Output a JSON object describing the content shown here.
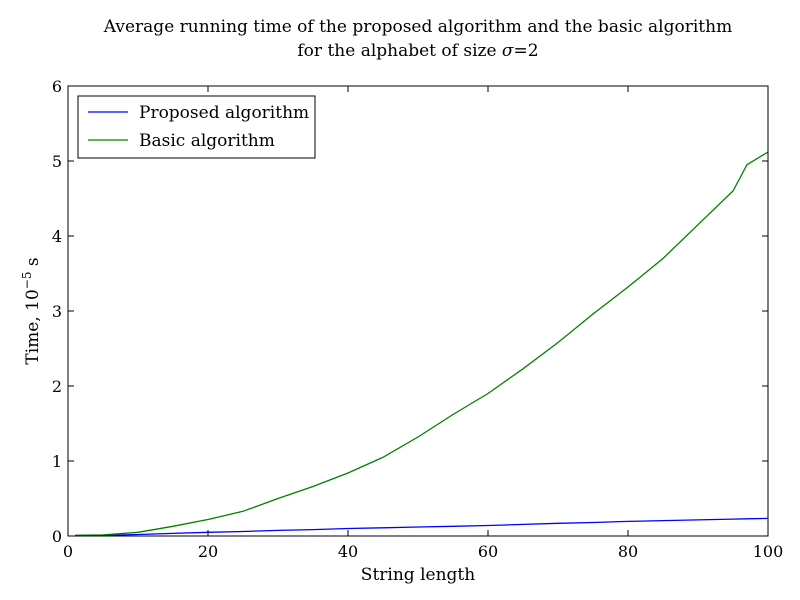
{
  "chart_data": {
    "type": "line",
    "title": "Average running time of the proposed algorithm and the basic algorithm",
    "subtitle_prefix": "for the alphabet of size ",
    "subtitle_symbol": "σ",
    "subtitle_suffix": "=2",
    "xlabel": "String length",
    "ylabel_prefix": "Time, 10",
    "ylabel_exponent": "−5",
    "ylabel_suffix": " s",
    "xlim": [
      0,
      100
    ],
    "ylim": [
      0,
      6
    ],
    "xticks": [
      0,
      20,
      40,
      60,
      80,
      100
    ],
    "yticks": [
      0,
      1,
      2,
      3,
      4,
      5,
      6
    ],
    "grid": false,
    "legend_position": "top-left",
    "x": [
      1,
      5,
      10,
      15,
      20,
      25,
      30,
      35,
      40,
      45,
      50,
      55,
      60,
      65,
      70,
      75,
      80,
      85,
      90,
      95,
      97,
      100
    ],
    "series": [
      {
        "name": "Proposed algorithm",
        "color": "#0000ff",
        "values": [
          0.005,
          0.01,
          0.02,
          0.035,
          0.05,
          0.06,
          0.075,
          0.085,
          0.1,
          0.11,
          0.12,
          0.13,
          0.14,
          0.155,
          0.17,
          0.18,
          0.195,
          0.205,
          0.215,
          0.225,
          0.23,
          0.235
        ]
      },
      {
        "name": "Basic algorithm",
        "color": "#008000",
        "values": [
          0.01,
          0.015,
          0.05,
          0.13,
          0.22,
          0.33,
          0.5,
          0.66,
          0.84,
          1.05,
          1.32,
          1.62,
          1.9,
          2.23,
          2.58,
          2.96,
          3.32,
          3.7,
          4.15,
          4.6,
          4.95,
          5.12
        ]
      }
    ]
  }
}
